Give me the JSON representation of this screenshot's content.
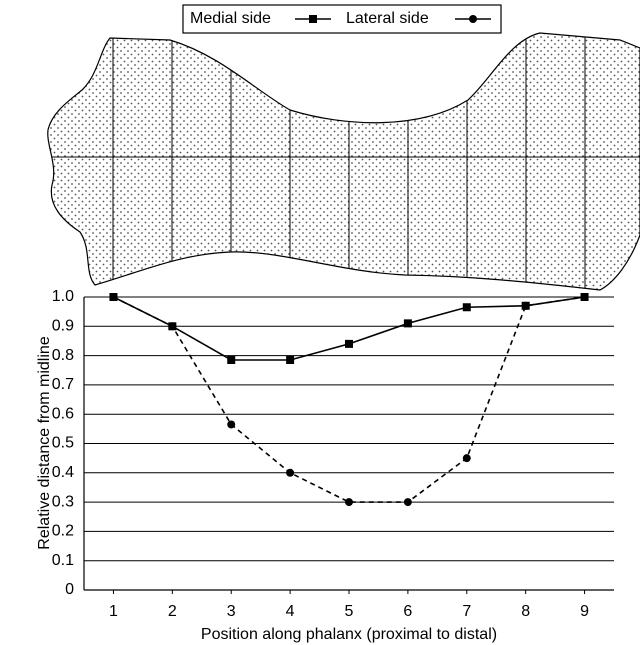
{
  "chart_data": {
    "type": "line",
    "x_label": "Position along phalanx (proximal to distal)",
    "y_label": "Relative distance from midline",
    "x": [
      1,
      2,
      3,
      4,
      5,
      6,
      7,
      8,
      9
    ],
    "xlim": [
      0.5,
      9.5
    ],
    "xticks": [
      1,
      2,
      3,
      4,
      5,
      6,
      7,
      8,
      9
    ],
    "ylim": [
      0,
      1
    ],
    "yticks": [
      0,
      0.1,
      0.2,
      0.3,
      0.4,
      0.5,
      0.6,
      0.7,
      0.8,
      0.9,
      {
        "value": 1,
        "label": "1.0"
      }
    ],
    "grid": true,
    "series": [
      {
        "name": "Medial side",
        "color": "#000000",
        "marker": "square",
        "dash": "solid",
        "values": [
          1.0,
          0.9,
          0.785,
          0.785,
          0.84,
          0.91,
          0.965,
          0.97,
          1.0
        ]
      },
      {
        "name": "Lateral side",
        "color": "#000000",
        "marker": "circle",
        "dash": "dashed",
        "values": [
          1.0,
          0.9,
          0.565,
          0.4,
          0.3,
          0.3,
          0.45,
          0.97,
          1.0
        ]
      }
    ]
  }
}
